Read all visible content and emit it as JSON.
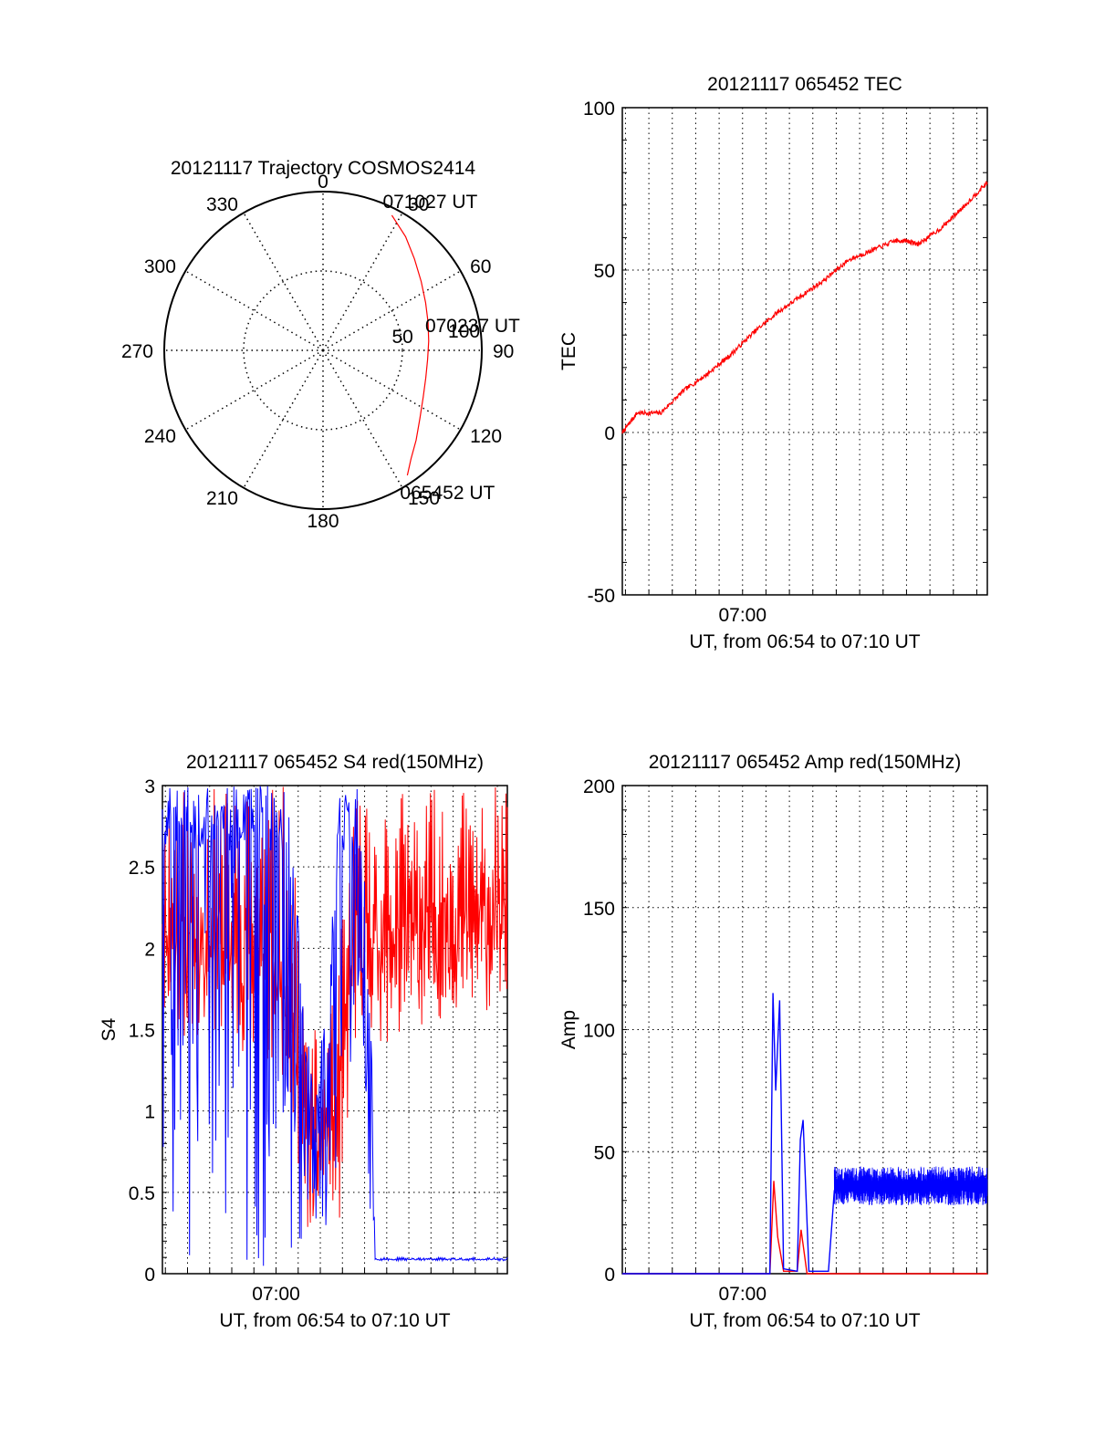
{
  "chart_data": [
    {
      "id": "trajectory",
      "type": "polar",
      "title": "20121117 Trajectory COSMOS2414",
      "azimuth_labels": [
        "0",
        "30",
        "60",
        "90",
        "120",
        "150",
        "180",
        "210",
        "240",
        "270",
        "300",
        "330"
      ],
      "azimuth_deg": [
        0,
        30,
        60,
        90,
        120,
        150,
        180,
        210,
        240,
        270,
        300,
        330
      ],
      "radial_labels": [
        "50",
        "100"
      ],
      "radial_values": [
        50,
        100
      ],
      "r_max": 100,
      "track": {
        "azimuth_deg": [
          27,
          36,
          45,
          55,
          65,
          75,
          85,
          95,
          105,
          115,
          125,
          134,
          141,
          146
        ],
        "radius": [
          95.5,
          88.5,
          81.4,
          75.5,
          71.3,
          68.5,
          66.8,
          66.1,
          67.0,
          69.6,
          74.5,
          81.5,
          88.0,
          95.0
        ],
        "color": "#ff0000"
      },
      "time_labels": [
        {
          "text": "071027 UT",
          "azimuth_deg": 27,
          "radius": 95.5
        },
        {
          "text": "070237 UT",
          "azimuth_deg": 84,
          "radius": 67
        },
        {
          "text": "065452 UT",
          "azimuth_deg": 146,
          "radius": 95
        }
      ]
    },
    {
      "id": "tec",
      "type": "line",
      "title": "20121117 065452 TEC",
      "ylabel": "TEC",
      "xlabel": "UT, from 06:54 to 07:10 UT",
      "x_tick_labels": [
        "07:00"
      ],
      "xlim": [
        "06:54:52",
        "07:10:27"
      ],
      "ylim": [
        -50,
        100
      ],
      "y_ticks": [
        -50,
        0,
        50,
        100
      ],
      "grid": true,
      "series": [
        {
          "color": "#ff0000",
          "x": [
            "06:54:52",
            "06:55:30",
            "06:56:30",
            "06:57:30",
            "06:58:30",
            "06:59:30",
            "07:00:30",
            "07:01:30",
            "07:02:30",
            "07:03:30",
            "07:04:30",
            "07:05:30",
            "07:06:30",
            "07:07:00",
            "07:07:30",
            "07:08:30",
            "07:09:30",
            "07:10:27"
          ],
          "y": [
            0,
            6,
            6,
            13,
            18,
            24,
            31,
            37,
            42,
            47,
            53,
            56,
            59,
            59,
            58,
            63,
            70,
            77
          ]
        }
      ]
    },
    {
      "id": "s4",
      "type": "line",
      "title": "20121117 065452 S4 red(150MHz)",
      "ylabel": "S4",
      "xlabel": "UT, from 06:54 to 07:10 UT",
      "x_tick_labels": [
        "07:00"
      ],
      "xlim": [
        "06:54:52",
        "07:10:27"
      ],
      "ylim": [
        0,
        3
      ],
      "y_ticks": [
        0,
        0.5,
        1,
        1.5,
        2,
        2.5,
        3
      ],
      "y_tick_labels": [
        "0",
        "0.5",
        "1",
        "1.5",
        "2",
        "2.5",
        "3"
      ],
      "grid": true,
      "series": [
        {
          "color": "#ff0000",
          "x": [
            "06:54:52",
            "06:56:00",
            "06:57:30",
            "06:59:00",
            "07:00:30",
            "07:01:10",
            "07:01:40",
            "07:02:20",
            "07:02:50",
            "07:03:30",
            "07:04:00",
            "07:05:00",
            "07:06:30",
            "07:08:00",
            "07:09:30",
            "07:10:27"
          ],
          "y_min": [
            1.6,
            1.4,
            1.5,
            1.3,
            1.2,
            0.3,
            0.1,
            0.6,
            0.2,
            1.4,
            1.5,
            1.4,
            1.5,
            1.6,
            1.6,
            1.7
          ],
          "y_max": [
            3,
            3,
            3,
            3,
            3,
            2.0,
            1.5,
            1.5,
            2.0,
            3,
            3,
            3,
            3,
            3,
            3,
            3
          ]
        },
        {
          "color": "#0000ff",
          "x": [
            "06:54:52",
            "06:56:00",
            "06:57:30",
            "06:59:00",
            "07:00:30",
            "07:01:10",
            "07:01:40",
            "07:02:20",
            "07:02:50",
            "07:03:20",
            "07:03:50",
            "07:04:20",
            "07:04:30",
            "07:06:30",
            "07:08:30",
            "07:10:27"
          ],
          "y_min": [
            0,
            0,
            0,
            0,
            0,
            0.2,
            0.15,
            0.2,
            0.7,
            0.6,
            1.5,
            0.08,
            0.08,
            0.08,
            0.08,
            0.08
          ],
          "y_max": [
            3,
            3,
            3,
            3,
            3,
            1.9,
            1.3,
            1.6,
            3,
            3,
            3,
            1.3,
            0.1,
            0.1,
            0.1,
            0.1
          ]
        }
      ]
    },
    {
      "id": "amp",
      "type": "line",
      "title": "20121117 065452 Amp red(150MHz)",
      "ylabel": "Amp",
      "xlabel": "UT, from 06:54 to 07:10 UT",
      "x_tick_labels": [
        "07:00"
      ],
      "xlim": [
        "06:54:52",
        "07:10:27"
      ],
      "ylim": [
        0,
        200
      ],
      "y_ticks": [
        0,
        50,
        100,
        150,
        200
      ],
      "grid": true,
      "series": [
        {
          "color": "#ff0000",
          "x": [
            "06:54:52",
            "07:01:10",
            "07:01:20",
            "07:01:30",
            "07:01:45",
            "07:02:20",
            "07:02:30",
            "07:02:45",
            "07:03:20",
            "07:10:27"
          ],
          "y": [
            0,
            0,
            38,
            15,
            1,
            1,
            18,
            0,
            0,
            0
          ]
        },
        {
          "color": "#0000ff",
          "x": [
            "06:54:52",
            "07:01:10",
            "07:01:18",
            "07:01:25",
            "07:01:35",
            "07:01:45",
            "07:02:20",
            "07:02:28",
            "07:02:35",
            "07:02:50",
            "07:03:40",
            "07:03:55",
            "07:05:30",
            "07:07:30",
            "07:10:27"
          ],
          "y": [
            0,
            0,
            115,
            75,
            112,
            2,
            1,
            55,
            63,
            1,
            1,
            34,
            36,
            35,
            35
          ],
          "band_from": "07:03:55",
          "band_min": 28,
          "band_max": 44
        }
      ]
    }
  ]
}
